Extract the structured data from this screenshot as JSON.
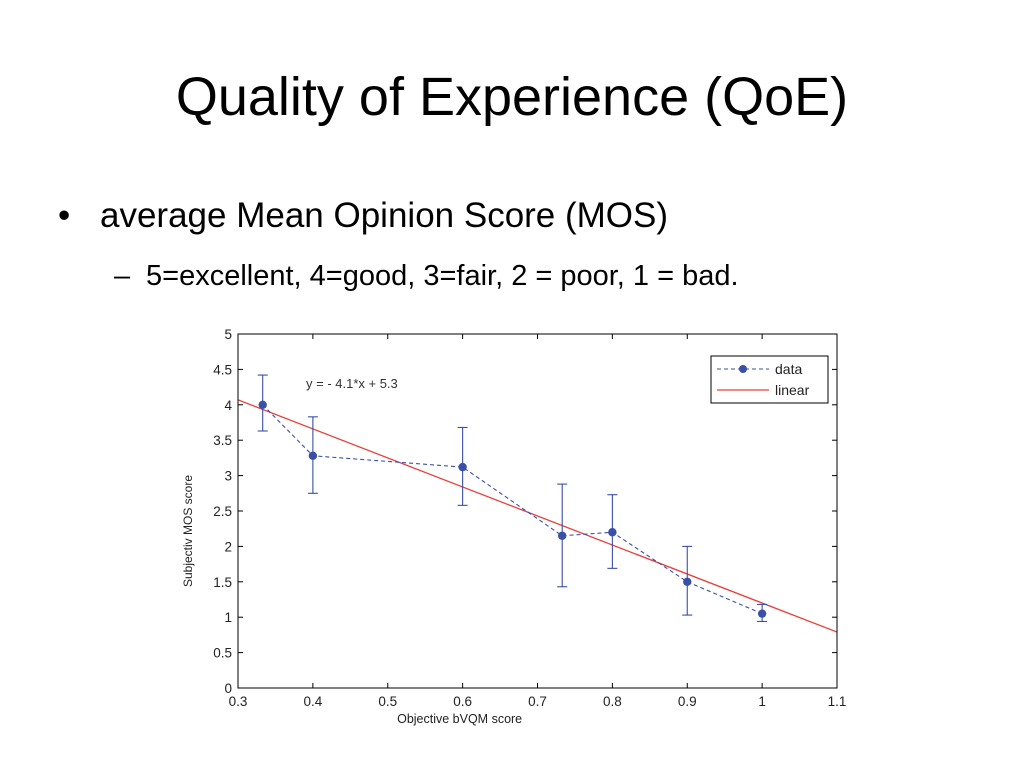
{
  "slide": {
    "title": "Quality of Experience (QoE)",
    "bullet_marker": "•",
    "bullet": "average Mean Opinion Score (MOS)",
    "sub_marker": "–",
    "sub_bullet": "5=excellent, 4=good, 3=fair, 2 = poor, 1 = bad."
  },
  "chart_data": {
    "type": "scatter",
    "xlabel": "Objective bVQM score",
    "ylabel": "Subjectiv MOS score",
    "xlim": [
      0.3,
      1.1
    ],
    "ylim": [
      0,
      5
    ],
    "x_ticks": [
      0.3,
      0.4,
      0.5,
      0.6,
      0.7,
      0.8,
      0.9,
      1,
      1.1
    ],
    "y_ticks": [
      0,
      0.5,
      1,
      1.5,
      2,
      2.5,
      3,
      3.5,
      4,
      4.5,
      5
    ],
    "x_tick_labels": [
      "0.3",
      "0.4",
      "0.5",
      "0.6",
      "0.7",
      "0.8",
      "0.9",
      "1",
      "1.1"
    ],
    "y_tick_labels": [
      "0",
      "0.5",
      "1",
      "1.5",
      "2",
      "2.5",
      "3",
      "3.5",
      "4",
      "4.5",
      "5"
    ],
    "annotation": "y = - 4.1*x + 5.3",
    "legend_position": "top-right",
    "grid": false,
    "series": [
      {
        "name": "data",
        "style": "dashed-with-markers",
        "color": "#3a4fa8",
        "x": [
          0.333,
          0.4,
          0.6,
          0.733,
          0.8,
          0.9,
          1.0
        ],
        "y": [
          4.0,
          3.28,
          3.12,
          2.15,
          2.2,
          1.5,
          1.05
        ],
        "err_low": [
          3.63,
          2.75,
          2.58,
          1.43,
          1.69,
          1.03,
          0.94
        ],
        "err_high": [
          4.42,
          3.83,
          3.68,
          2.88,
          2.73,
          2.0,
          1.18
        ]
      },
      {
        "name": "linear",
        "style": "solid",
        "color": "#e8403a",
        "x": [
          0.3,
          1.1
        ],
        "y": [
          4.07,
          0.79
        ]
      }
    ]
  }
}
